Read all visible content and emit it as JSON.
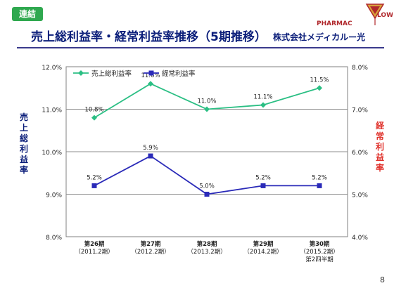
{
  "header": {
    "badge": "連結",
    "title": "売上総利益率・経常利益率推移（5期推移）",
    "company": "株式会社メディカルー光",
    "logo_text": "PHARMACY FLOWER"
  },
  "page_number": "8",
  "colors": {
    "gross": "#2bbf84",
    "ordinary": "#2a2ab8",
    "title": "#0b1e7a",
    "right_axis": "#e0312b",
    "badge": "#2fa84f"
  },
  "chart_data": {
    "type": "line",
    "categories": [
      [
        "第26期",
        "（2011.2期）"
      ],
      [
        "第27期",
        "（2012.2期）"
      ],
      [
        "第28期",
        "（2013.2期）"
      ],
      [
        "第29期",
        "（2014.2期）"
      ],
      [
        "第30期",
        "（2015.2期）",
        "第2四半期"
      ]
    ],
    "ylabel": "売上総利益率",
    "y2label": "経常利益率",
    "ylim": [
      8.0,
      12.0
    ],
    "y2lim": [
      4.0,
      8.0
    ],
    "yticks": [
      "8.0%",
      "9.0%",
      "10.0%",
      "11.0%",
      "12.0%"
    ],
    "y2ticks": [
      "4.0%",
      "5.0%",
      "6.0%",
      "7.0%",
      "8.0%"
    ],
    "grid": true,
    "legend": "top-left",
    "series": [
      {
        "name": "売上総利益率",
        "axis": "left",
        "marker": "diamond",
        "values": [
          10.8,
          11.6,
          11.0,
          11.1,
          11.5
        ],
        "labels": [
          "10.8%",
          "11.6%",
          "11.0%",
          "11.1%",
          "11.5%"
        ]
      },
      {
        "name": "経常利益率",
        "axis": "right",
        "marker": "square",
        "values": [
          5.2,
          5.9,
          5.0,
          5.2,
          5.2
        ],
        "labels": [
          "5.2%",
          "5.9%",
          "5.0%",
          "5.2%",
          "5.2%"
        ]
      }
    ]
  }
}
